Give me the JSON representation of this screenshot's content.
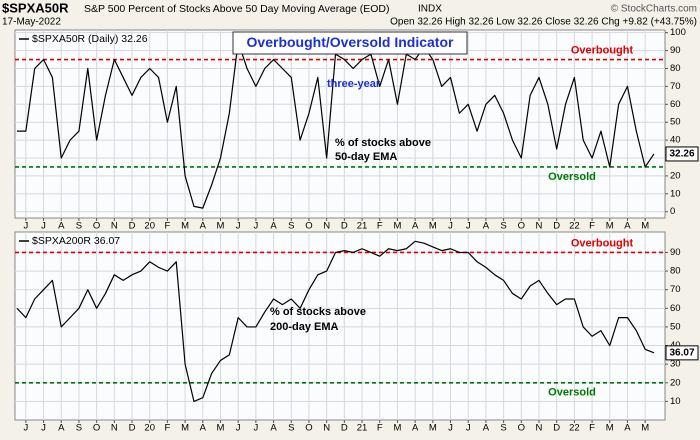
{
  "header": {
    "symbol": "$SPXA50R",
    "description": "S&P 500 Percent of Stocks Above 50 Day Moving Average (EOD)",
    "exchange": "INDX",
    "date": "17-May-2022",
    "quote": "Open 32.26 High 32.26 Low 32.26 Close 32.26 Chg +9.82 (+43.75%)",
    "credit": "© StockCharts.com"
  },
  "chart_data": [
    {
      "type": "line",
      "title": "Overbought/Oversold Indicator",
      "annotations": [
        "three-year",
        "% of stocks above",
        "50-day EMA"
      ],
      "categories": [
        null,
        "J",
        null,
        "J",
        null,
        "A",
        null,
        "S",
        null,
        "O",
        null,
        "N",
        null,
        "D",
        null,
        "20",
        null,
        "F",
        null,
        "M",
        null,
        "A",
        null,
        "M",
        null,
        "J",
        null,
        "J",
        null,
        "A",
        null,
        "S",
        null,
        "O",
        null,
        "N",
        null,
        "D",
        null,
        "21",
        null,
        "F",
        null,
        "M",
        null,
        "A",
        null,
        "M",
        null,
        "J",
        null,
        "J",
        null,
        "A",
        null,
        "S",
        null,
        "O",
        null,
        "N",
        null,
        "D",
        null,
        "22",
        null,
        "F",
        null,
        "M",
        null,
        "A",
        null,
        "M",
        null
      ],
      "series": [
        {
          "name": "$SPXA50R (Daily) 32.26",
          "color": "#000000",
          "values": [
            45,
            45,
            80,
            85,
            75,
            30,
            40,
            45,
            80,
            40,
            65,
            85,
            75,
            65,
            75,
            80,
            75,
            50,
            70,
            20,
            3,
            2,
            15,
            30,
            55,
            95,
            80,
            70,
            80,
            85,
            80,
            75,
            40,
            55,
            75,
            30,
            88,
            85,
            80,
            85,
            88,
            70,
            85,
            60,
            88,
            85,
            92,
            85,
            70,
            75,
            55,
            60,
            45,
            60,
            65,
            55,
            40,
            30,
            65,
            75,
            60,
            35,
            60,
            75,
            40,
            30,
            45,
            25,
            60,
            70,
            45,
            25,
            32.26
          ]
        }
      ],
      "hlines": [
        {
          "value": 85,
          "label": "Overbought",
          "color": "#e00000"
        },
        {
          "value": 25,
          "label": "Oversold",
          "color": "#007700"
        }
      ],
      "ylim": [
        -3.5,
        101.5
      ],
      "yticks": [
        0,
        10,
        20,
        30,
        40,
        50,
        60,
        70,
        80,
        90,
        100
      ],
      "grid": true
    },
    {
      "type": "line",
      "annotations": [
        "% of stocks above",
        "200-day EMA"
      ],
      "categories": [
        null,
        "J",
        null,
        "J",
        null,
        "A",
        null,
        "S",
        null,
        "O",
        null,
        "N",
        null,
        "D",
        null,
        "20",
        null,
        "F",
        null,
        "M",
        null,
        "A",
        null,
        "M",
        null,
        "J",
        null,
        "J",
        null,
        "A",
        null,
        "S",
        null,
        "O",
        null,
        "N",
        null,
        "D",
        null,
        "21",
        null,
        "F",
        null,
        "M",
        null,
        "A",
        null,
        "M",
        null,
        "J",
        null,
        "J",
        null,
        "A",
        null,
        "S",
        null,
        "O",
        null,
        "N",
        null,
        "D",
        null,
        "22",
        null,
        "F",
        null,
        "M",
        null,
        "A",
        null,
        "M",
        null
      ],
      "series": [
        {
          "name": "$SPXA200R 36.07",
          "color": "#000000",
          "values": [
            60,
            55,
            65,
            70,
            75,
            50,
            55,
            60,
            70,
            60,
            68,
            78,
            75,
            78,
            80,
            85,
            82,
            80,
            85,
            30,
            10,
            12,
            25,
            32,
            35,
            55,
            50,
            50,
            58,
            65,
            62,
            65,
            60,
            70,
            78,
            80,
            90,
            91,
            90,
            92,
            90,
            88,
            92,
            91,
            92,
            96,
            95,
            93,
            91,
            92,
            90,
            90,
            85,
            82,
            78,
            75,
            68,
            65,
            72,
            75,
            68,
            62,
            65,
            65,
            50,
            45,
            48,
            40,
            55,
            55,
            48,
            38,
            36.07
          ]
        }
      ],
      "hlines": [
        {
          "value": 90,
          "label": "Overbought",
          "color": "#e00000"
        },
        {
          "value": 20,
          "label": "Oversold",
          "color": "#007700"
        }
      ],
      "ylim": [
        0,
        101
      ],
      "yticks": [
        10,
        20,
        30,
        40,
        50,
        60,
        70,
        80,
        90
      ],
      "grid": true
    }
  ]
}
